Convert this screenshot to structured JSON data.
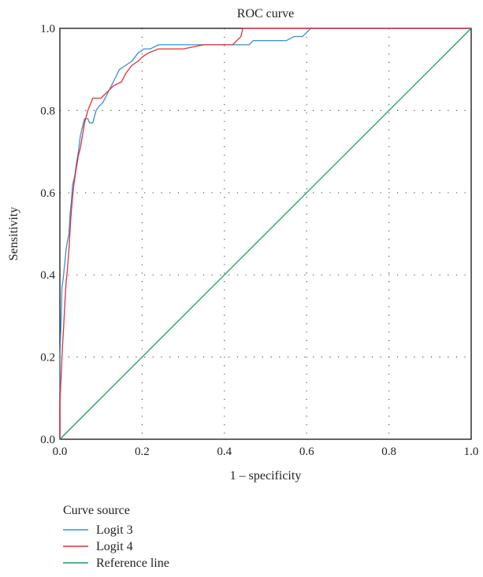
{
  "chart_data": {
    "type": "line",
    "title": "ROC curve",
    "xlabel": "1 – specificity",
    "ylabel": "Sensitivity",
    "xlim": [
      0.0,
      1.0
    ],
    "ylim": [
      0.0,
      1.0
    ],
    "xticks": [
      "0.0",
      "0.2",
      "0.4",
      "0.6",
      "0.8",
      "1.0"
    ],
    "yticks": [
      "0.0",
      "0.2",
      "0.4",
      "0.6",
      "0.8",
      "1.0"
    ],
    "grid": "dotted",
    "legend": {
      "title": "Curve source",
      "position": "bottom-left"
    },
    "series": [
      {
        "name": "Logit 3",
        "color": "#3a8fd0",
        "points": [
          [
            0.0,
            0.0
          ],
          [
            0.0,
            0.2
          ],
          [
            0.003,
            0.29
          ],
          [
            0.005,
            0.37
          ],
          [
            0.008,
            0.39
          ],
          [
            0.012,
            0.43
          ],
          [
            0.015,
            0.46
          ],
          [
            0.018,
            0.48
          ],
          [
            0.022,
            0.5
          ],
          [
            0.025,
            0.55
          ],
          [
            0.028,
            0.58
          ],
          [
            0.031,
            0.62
          ],
          [
            0.036,
            0.64
          ],
          [
            0.04,
            0.67
          ],
          [
            0.045,
            0.7
          ],
          [
            0.05,
            0.74
          ],
          [
            0.055,
            0.76
          ],
          [
            0.06,
            0.78
          ],
          [
            0.068,
            0.78
          ],
          [
            0.072,
            0.77
          ],
          [
            0.08,
            0.77
          ],
          [
            0.088,
            0.8
          ],
          [
            0.095,
            0.81
          ],
          [
            0.105,
            0.82
          ],
          [
            0.115,
            0.84
          ],
          [
            0.125,
            0.86
          ],
          [
            0.135,
            0.88
          ],
          [
            0.145,
            0.9
          ],
          [
            0.16,
            0.91
          ],
          [
            0.175,
            0.92
          ],
          [
            0.19,
            0.94
          ],
          [
            0.205,
            0.95
          ],
          [
            0.22,
            0.95
          ],
          [
            0.24,
            0.96
          ],
          [
            0.3,
            0.96
          ],
          [
            0.36,
            0.96
          ],
          [
            0.42,
            0.96
          ],
          [
            0.46,
            0.96
          ],
          [
            0.47,
            0.97
          ],
          [
            0.55,
            0.97
          ],
          [
            0.57,
            0.98
          ],
          [
            0.59,
            0.98
          ],
          [
            0.6,
            0.99
          ],
          [
            0.61,
            1.0
          ],
          [
            1.0,
            1.0
          ]
        ]
      },
      {
        "name": "Logit 4",
        "color": "#e0303a",
        "points": [
          [
            0.0,
            0.0
          ],
          [
            0.0,
            0.09
          ],
          [
            0.003,
            0.15
          ],
          [
            0.006,
            0.22
          ],
          [
            0.009,
            0.27
          ],
          [
            0.012,
            0.33
          ],
          [
            0.015,
            0.38
          ],
          [
            0.018,
            0.41
          ],
          [
            0.022,
            0.46
          ],
          [
            0.026,
            0.53
          ],
          [
            0.03,
            0.58
          ],
          [
            0.034,
            0.62
          ],
          [
            0.04,
            0.66
          ],
          [
            0.045,
            0.69
          ],
          [
            0.05,
            0.71
          ],
          [
            0.055,
            0.74
          ],
          [
            0.06,
            0.77
          ],
          [
            0.068,
            0.8
          ],
          [
            0.08,
            0.83
          ],
          [
            0.1,
            0.83
          ],
          [
            0.11,
            0.84
          ],
          [
            0.12,
            0.85
          ],
          [
            0.13,
            0.86
          ],
          [
            0.15,
            0.87
          ],
          [
            0.16,
            0.89
          ],
          [
            0.175,
            0.91
          ],
          [
            0.19,
            0.92
          ],
          [
            0.2,
            0.93
          ],
          [
            0.215,
            0.94
          ],
          [
            0.24,
            0.95
          ],
          [
            0.3,
            0.95
          ],
          [
            0.35,
            0.96
          ],
          [
            0.42,
            0.96
          ],
          [
            0.43,
            0.97
          ],
          [
            0.44,
            0.98
          ],
          [
            0.445,
            1.0
          ],
          [
            1.0,
            1.0
          ]
        ]
      },
      {
        "name": "Reference line",
        "color": "#1a9a5a",
        "points": [
          [
            0.0,
            0.0
          ],
          [
            1.0,
            1.0
          ]
        ]
      }
    ]
  }
}
